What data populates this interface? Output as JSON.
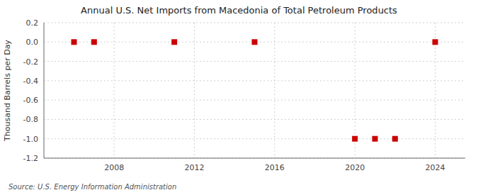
{
  "chart_data": {
    "type": "scatter",
    "title": "Annual U.S. Net Imports from Macedonia of Total Petroleum Products",
    "ylabel": "Thousand Barrels per Day",
    "annotation": "Source: U.S. Energy Information Administration",
    "x": [
      2006,
      2007,
      2011,
      2015,
      2020,
      2021,
      2022,
      2024
    ],
    "values": [
      0,
      0,
      0,
      0,
      -1,
      -1,
      -1,
      0
    ],
    "color": "#cc0000",
    "marker": "square",
    "xlim": [
      2004.5,
      2025.5
    ],
    "xticks": [
      2008,
      2012,
      2016,
      2020,
      2024
    ],
    "ylim": [
      -1.2,
      0.2
    ],
    "yticks": [
      0.2,
      {
        "value": 0,
        "label": "0.0"
      },
      -0.2,
      -0.4,
      -0.6,
      -0.8,
      {
        "value": -1,
        "label": "-1.0"
      },
      -1.2
    ],
    "grid": true
  }
}
